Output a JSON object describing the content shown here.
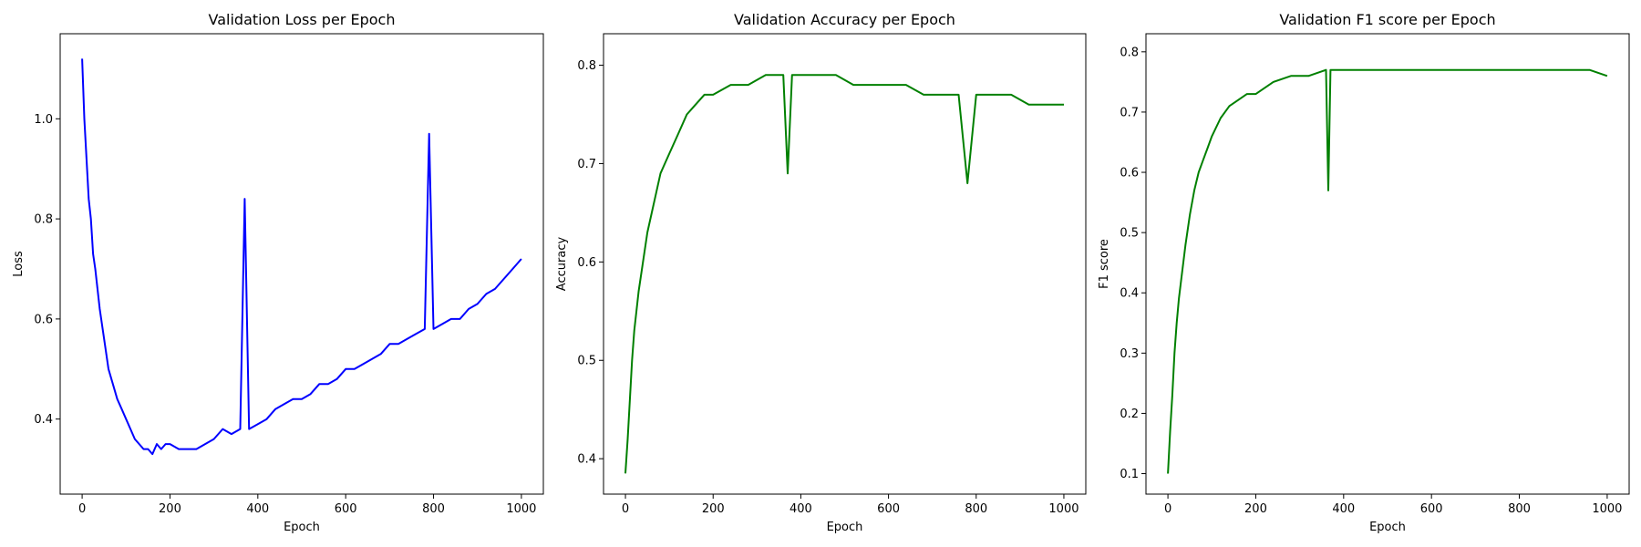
{
  "chart_data": [
    {
      "type": "line",
      "title": "Validation Loss per Epoch",
      "xlabel": "Epoch",
      "ylabel": "Loss",
      "xlim": [
        -50,
        1050
      ],
      "ylim": [
        0.25,
        1.17
      ],
      "xticks": [
        0,
        200,
        400,
        600,
        800,
        1000
      ],
      "yticks": [
        0.4,
        0.6,
        0.8,
        1.0
      ],
      "ytick_labels": [
        "0.4",
        "0.6",
        "0.8",
        "1.0"
      ],
      "color": "#0000ff",
      "grid": false,
      "series": [
        {
          "x": [
            0,
            5,
            10,
            15,
            20,
            25,
            30,
            40,
            50,
            60,
            70,
            80,
            90,
            100,
            110,
            120,
            130,
            140,
            150,
            160,
            170,
            180,
            190,
            200,
            220,
            240,
            260,
            280,
            300,
            320,
            340,
            360,
            370,
            380,
            400,
            420,
            440,
            460,
            480,
            500,
            520,
            540,
            560,
            580,
            600,
            620,
            640,
            660,
            680,
            700,
            720,
            740,
            760,
            780,
            790,
            800,
            820,
            840,
            860,
            880,
            900,
            920,
            940,
            960,
            980,
            1000
          ],
          "y": [
            1.12,
            1.0,
            0.92,
            0.84,
            0.8,
            0.73,
            0.7,
            0.62,
            0.56,
            0.5,
            0.47,
            0.44,
            0.42,
            0.4,
            0.38,
            0.36,
            0.35,
            0.34,
            0.34,
            0.33,
            0.35,
            0.34,
            0.35,
            0.35,
            0.34,
            0.34,
            0.34,
            0.35,
            0.36,
            0.38,
            0.37,
            0.38,
            0.84,
            0.38,
            0.39,
            0.4,
            0.42,
            0.43,
            0.44,
            0.44,
            0.45,
            0.47,
            0.47,
            0.48,
            0.5,
            0.5,
            0.51,
            0.52,
            0.53,
            0.55,
            0.55,
            0.56,
            0.57,
            0.58,
            0.97,
            0.58,
            0.59,
            0.6,
            0.6,
            0.62,
            0.63,
            0.65,
            0.66,
            0.68,
            0.7,
            0.72
          ]
        }
      ]
    },
    {
      "type": "line",
      "title": "Validation Accuracy per Epoch",
      "xlabel": "Epoch",
      "ylabel": "Accuracy",
      "xlim": [
        -50,
        1050
      ],
      "ylim": [
        0.364,
        0.832
      ],
      "xticks": [
        0,
        200,
        400,
        600,
        800,
        1000
      ],
      "yticks": [
        0.4,
        0.5,
        0.6,
        0.7,
        0.8
      ],
      "ytick_labels": [
        "0.4",
        "0.5",
        "0.6",
        "0.7",
        "0.8"
      ],
      "color": "#008000",
      "grid": false,
      "series": [
        {
          "x": [
            0,
            5,
            10,
            15,
            20,
            25,
            30,
            40,
            50,
            60,
            70,
            80,
            90,
            100,
            120,
            140,
            160,
            180,
            200,
            240,
            280,
            320,
            360,
            370,
            380,
            400,
            440,
            480,
            520,
            560,
            600,
            640,
            680,
            720,
            760,
            780,
            800,
            840,
            880,
            920,
            960,
            1000
          ],
          "y": [
            0.385,
            0.42,
            0.46,
            0.5,
            0.53,
            0.55,
            0.57,
            0.6,
            0.63,
            0.65,
            0.67,
            0.69,
            0.7,
            0.71,
            0.73,
            0.75,
            0.76,
            0.77,
            0.77,
            0.78,
            0.78,
            0.79,
            0.79,
            0.69,
            0.79,
            0.79,
            0.79,
            0.79,
            0.78,
            0.78,
            0.78,
            0.78,
            0.77,
            0.77,
            0.77,
            0.68,
            0.77,
            0.77,
            0.77,
            0.76,
            0.76,
            0.76
          ]
        }
      ]
    },
    {
      "type": "line",
      "title": "Validation F1 score per Epoch",
      "xlabel": "Epoch",
      "ylabel": "F1 score",
      "xlim": [
        -50,
        1050
      ],
      "ylim": [
        0.066,
        0.83
      ],
      "xticks": [
        0,
        200,
        400,
        600,
        800,
        1000
      ],
      "yticks": [
        0.1,
        0.2,
        0.3,
        0.4,
        0.5,
        0.6,
        0.7,
        0.8
      ],
      "ytick_labels": [
        "0.1",
        "0.2",
        "0.3",
        "0.4",
        "0.5",
        "0.6",
        "0.7",
        "0.8"
      ],
      "color": "#008000",
      "grid": false,
      "series": [
        {
          "x": [
            0,
            5,
            10,
            15,
            20,
            25,
            30,
            40,
            50,
            60,
            70,
            80,
            90,
            100,
            120,
            140,
            160,
            180,
            200,
            240,
            280,
            320,
            360,
            365,
            370,
            400,
            440,
            480,
            520,
            560,
            600,
            640,
            680,
            720,
            760,
            780,
            800,
            840,
            880,
            920,
            960,
            1000
          ],
          "y": [
            0.1,
            0.17,
            0.23,
            0.3,
            0.35,
            0.39,
            0.42,
            0.48,
            0.53,
            0.57,
            0.6,
            0.62,
            0.64,
            0.66,
            0.69,
            0.71,
            0.72,
            0.73,
            0.73,
            0.75,
            0.76,
            0.76,
            0.77,
            0.57,
            0.77,
            0.77,
            0.77,
            0.77,
            0.77,
            0.77,
            0.77,
            0.77,
            0.77,
            0.77,
            0.77,
            0.77,
            0.77,
            0.77,
            0.77,
            0.77,
            0.77,
            0.76
          ]
        }
      ]
    }
  ]
}
